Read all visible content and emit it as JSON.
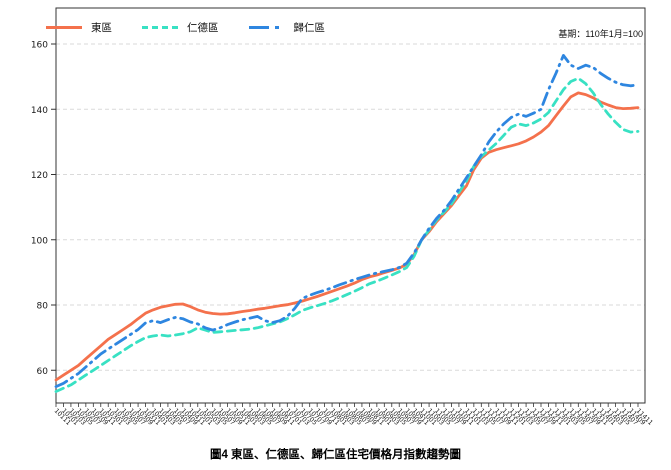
{
  "figure": {
    "caption": "圖4 東區、仁德區、歸仁區住宅價格月指數趨勢圖",
    "base_period_note": "基期：110年1月=100"
  },
  "chart_data": {
    "type": "line",
    "title": "圖4 東區、仁德區、歸仁區住宅價格月指數趨勢圖",
    "annotation": "基期：110年1月=100",
    "grid": "horizontal-dashed",
    "legend_position": "top-left-inside",
    "y_ticks": [
      60,
      80,
      100,
      120,
      140,
      160
    ],
    "ylim": [
      49.5,
      165
    ],
    "x_tick_labels": [
      "10111",
      "10201",
      "10203",
      "10205",
      "10207",
      "10209",
      "10211",
      "10301",
      "10303",
      "10305",
      "10307",
      "10309",
      "10311",
      "10401",
      "10403",
      "10405",
      "10407",
      "10409",
      "10411",
      "10501",
      "10503",
      "10505",
      "10507",
      "10509",
      "10511",
      "10601",
      "10603",
      "10605",
      "10607",
      "10609",
      "10611",
      "10701",
      "10703",
      "10705",
      "10707",
      "10709",
      "10711",
      "10801",
      "10803",
      "10805",
      "10807",
      "10809",
      "10811",
      "10901",
      "10903",
      "10905",
      "10907",
      "10909",
      "10911",
      "11001",
      "11003",
      "11005",
      "11007",
      "11009",
      "11011",
      "11101",
      "11103",
      "11105",
      "11107",
      "11109",
      "11111",
      "11201",
      "11203",
      "11205",
      "11207",
      "11209",
      "11211",
      "11301",
      "11303",
      "11305",
      "11307",
      "11309",
      "11311",
      "11401",
      "11403",
      "11405",
      "11407",
      "11409",
      "11411"
    ],
    "series": [
      {
        "name": "東區",
        "key": "dong-district",
        "color": "#F4714C",
        "style": "solid",
        "values": [
          57,
          58.5,
          60,
          61.5,
          63.5,
          65.5,
          67.5,
          69.5,
          71,
          72.5,
          74,
          75.8,
          77.5,
          78.5,
          79.3,
          79.8,
          80.2,
          80.3,
          79.5,
          78.5,
          77.8,
          77.4,
          77.2,
          77.3,
          77.6,
          78,
          78.3,
          78.7,
          79,
          79.4,
          79.8,
          80.1,
          80.6,
          81.2,
          81.9,
          82.6,
          83.4,
          84.2,
          85,
          85.8,
          86.7,
          87.8,
          88.6,
          89.2,
          89.9,
          90.6,
          91.3,
          92.5,
          95.5,
          100,
          102.5,
          105.5,
          108,
          110.5,
          113.5,
          116.5,
          121.5,
          125,
          126.8,
          127.6,
          128.2,
          128.8,
          129.4,
          130.3,
          131.5,
          133,
          135,
          138,
          141,
          143.8,
          145,
          144.5,
          143.5,
          142.2,
          141.3,
          140.5,
          140.2,
          140.3,
          140.5
        ]
      },
      {
        "name": "仁德區",
        "key": "rende-district",
        "color": "#38E1C3",
        "style": "dashed",
        "values": [
          53.5,
          54.5,
          55.5,
          57,
          58.5,
          60,
          61.5,
          63,
          64.5,
          66,
          67.5,
          68.8,
          70,
          70.5,
          70.8,
          70.5,
          70.8,
          71.2,
          71.8,
          73,
          72.3,
          71.6,
          71.8,
          72,
          72.2,
          72.4,
          72.6,
          73,
          73.6,
          74.2,
          74.8,
          75.8,
          77,
          78.3,
          79.1,
          79.8,
          80.5,
          81.3,
          82.2,
          83.2,
          84.2,
          85.3,
          86.5,
          87.3,
          88.2,
          89.2,
          90.2,
          91.5,
          95,
          100,
          103,
          106,
          108.5,
          111,
          114.5,
          118,
          122.5,
          125.5,
          127.5,
          129.5,
          132,
          134.5,
          135.5,
          135,
          135.8,
          137,
          139,
          142.5,
          146,
          148.5,
          149.5,
          147.8,
          145,
          141.5,
          138.5,
          136,
          133.8,
          133,
          133.2
        ]
      },
      {
        "name": "歸仁區",
        "key": "guiren-district",
        "color": "#2E86E0",
        "style": "dash-dot",
        "values": [
          55,
          56,
          57.5,
          59,
          61,
          63,
          65,
          66.5,
          68,
          69.5,
          71,
          72.5,
          74.5,
          75.2,
          74.6,
          75.5,
          76.2,
          75.8,
          74.8,
          74.2,
          73,
          72.3,
          73,
          74,
          74.8,
          75.5,
          76,
          76.5,
          75.2,
          74.6,
          75.2,
          76.5,
          79,
          82,
          83,
          83.8,
          84.5,
          85.3,
          86.2,
          87,
          87.8,
          88.5,
          89.2,
          89.8,
          90.3,
          90.8,
          91.5,
          92.8,
          96,
          100,
          103.5,
          106.5,
          109,
          112,
          115.5,
          119,
          122.5,
          126,
          130,
          133,
          135.5,
          137.5,
          138.5,
          137.8,
          138.8,
          140,
          146,
          151,
          156.5,
          153.5,
          152.5,
          153.5,
          152.8,
          151,
          149.5,
          148.3,
          147.5,
          147.2,
          147.5
        ]
      }
    ]
  }
}
